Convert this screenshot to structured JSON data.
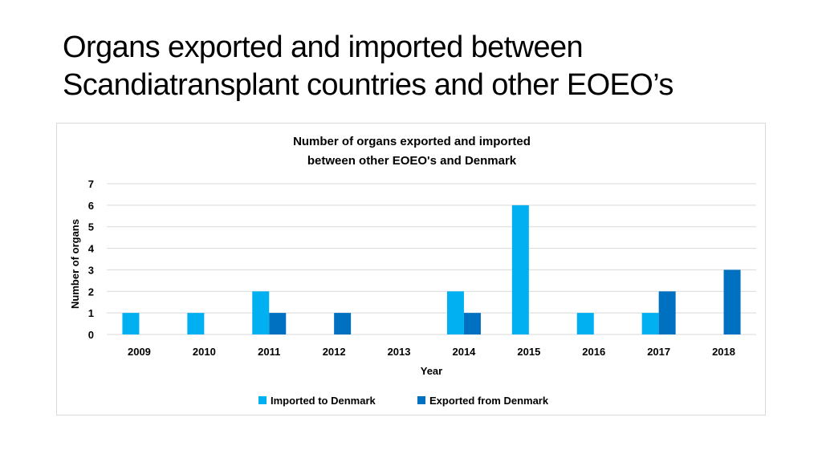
{
  "slide": {
    "title_line1": "Organs exported and imported between",
    "title_line2": "Scandiatransplant countries and other EOEO’s"
  },
  "chart_data": {
    "type": "bar",
    "title": "Number of organs exported and imported between other EOEO's and Denmark",
    "title_lines": [
      "Number of organs exported and imported",
      "between other EOEO's and Denmark"
    ],
    "xlabel": "Year",
    "ylabel": "Number of organs",
    "ylim": [
      0,
      7
    ],
    "yticks": [
      0,
      1,
      2,
      3,
      4,
      5,
      6,
      7
    ],
    "grid": true,
    "legend_position": "bottom",
    "categories": [
      "2009",
      "2010",
      "2011",
      "2012",
      "2013",
      "2014",
      "2015",
      "2016",
      "2017",
      "2018"
    ],
    "series": [
      {
        "name": "Imported to Denmark",
        "color": "#00b0f0",
        "values": [
          1,
          1,
          2,
          0,
          0,
          2,
          6,
          1,
          1,
          0
        ]
      },
      {
        "name": "Exported from Denmark",
        "color": "#0070c0",
        "values": [
          0,
          0,
          1,
          1,
          0,
          1,
          0,
          0,
          2,
          3
        ]
      }
    ]
  }
}
